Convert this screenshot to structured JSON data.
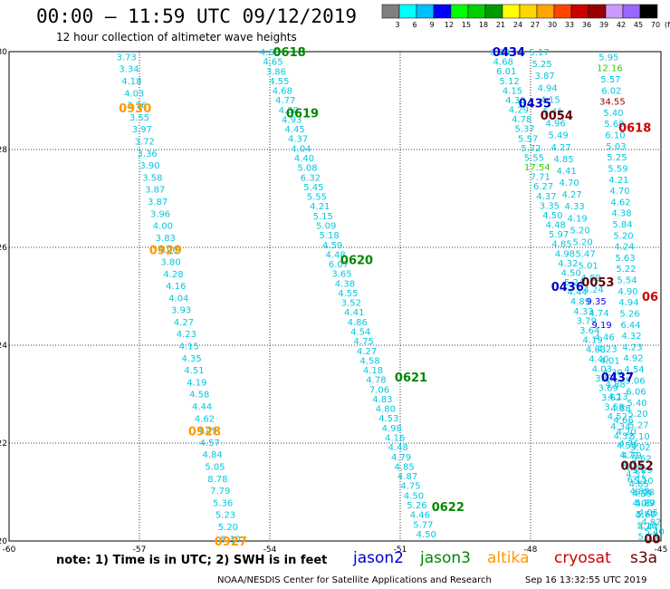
{
  "header": {
    "title": "00:00 – 11:59 UTC 09/12/2019",
    "subtitle": "12 hour collection of altimeter wave heights"
  },
  "colorbar": {
    "unit": "(ft)",
    "colors": [
      "#808080",
      "#00ffff",
      "#00bfff",
      "#0000ff",
      "#00ff00",
      "#00d000",
      "#009900",
      "#ffff00",
      "#ffd700",
      "#ffa500",
      "#ff4500",
      "#cc0000",
      "#990000",
      "#cc99ff",
      "#9966ff",
      "#000000"
    ],
    "labels": [
      "3",
      "6",
      "9",
      "12",
      "15",
      "18",
      "21",
      "24",
      "27",
      "30",
      "33",
      "36",
      "39",
      "42",
      "45",
      "70"
    ]
  },
  "footer": {
    "note": "note: 1) Time is in UTC; 2) SWH is in feet",
    "credit": "NOAA/NESDIS Center for Satellite Applications and Research",
    "timestamp": "Sep 16 13:32:55 UTC 2019"
  },
  "satellites": [
    {
      "name": "jason2",
      "color": "#0000cc"
    },
    {
      "name": "jason3",
      "color": "#008800"
    },
    {
      "name": "altika",
      "color": "#ff9900"
    },
    {
      "name": "cryosat",
      "color": "#cc0000"
    },
    {
      "name": "s3a",
      "color": "#660000"
    }
  ],
  "chart_data": {
    "type": "scatter",
    "title": "00:00 – 11:59 UTC 09/12/2019",
    "subtitle": "12 hour collection of altimeter wave heights",
    "xlim": [
      -60,
      -45
    ],
    "ylim": [
      20,
      30
    ],
    "x_ticks": [
      "-60",
      "-57",
      "-54",
      "-51",
      "-48",
      "-45"
    ],
    "y_ticks": [
      "20",
      "22",
      "24",
      "26",
      "28",
      "30"
    ],
    "grid": true,
    "units": "ft",
    "pass_times": [
      {
        "label": "0618",
        "sat": "jason3",
        "lon": -53.55,
        "lat": 30.0
      },
      {
        "label": "0619",
        "sat": "jason3",
        "lon": -53.25,
        "lat": 28.75
      },
      {
        "label": "0620",
        "sat": "jason3",
        "lon": -52.0,
        "lat": 25.75
      },
      {
        "label": "0621",
        "sat": "jason3",
        "lon": -50.75,
        "lat": 23.35
      },
      {
        "label": "0622",
        "sat": "jason3",
        "lon": -49.9,
        "lat": 20.7
      },
      {
        "label": "0930",
        "sat": "altika",
        "lon": -57.1,
        "lat": 28.85
      },
      {
        "label": "0929",
        "sat": "altika",
        "lon": -56.4,
        "lat": 25.95
      },
      {
        "label": "0928",
        "sat": "altika",
        "lon": -55.5,
        "lat": 22.25
      },
      {
        "label": "0927",
        "sat": "altika",
        "lon": -54.9,
        "lat": 20.0
      },
      {
        "label": "0434",
        "sat": "jason2",
        "lon": -48.5,
        "lat": 30.0
      },
      {
        "label": "0435",
        "sat": "jason2",
        "lon": -47.9,
        "lat": 28.95
      },
      {
        "label": "0436",
        "sat": "jason2",
        "lon": -47.15,
        "lat": 25.2
      },
      {
        "label": "0437",
        "sat": "jason2",
        "lon": -46.0,
        "lat": 23.35
      },
      {
        "label": "0054",
        "sat": "s3a",
        "lon": -47.4,
        "lat": 28.7
      },
      {
        "label": "0053",
        "sat": "s3a",
        "lon": -46.45,
        "lat": 25.3
      },
      {
        "label": "0052",
        "sat": "s3a",
        "lon": -45.55,
        "lat": 21.55
      },
      {
        "label": "0618",
        "sat": "cryosat",
        "lon": -45.6,
        "lat": 28.45
      },
      {
        "label": "06",
        "sat": "cryosat",
        "lon": -45.25,
        "lat": 25.0
      },
      {
        "label": "00",
        "sat": "s3a",
        "lon": -45.2,
        "lat": 20.05
      }
    ],
    "tracks": [
      {
        "name": "altika 0927-0930",
        "lon_top": -57.3,
        "lon_bottom": -54.9,
        "lat_top": 29.9,
        "lat_bottom": 20.05,
        "values": [
          "3.73",
          "3.34",
          "4.18",
          "4.03",
          "3.76",
          "3.55",
          "3.97",
          "3.72",
          "3.36",
          "3.90",
          "3.58",
          "3.87",
          "3.87",
          "3.96",
          "4.00",
          "3.83",
          "4.00",
          "3.80",
          "4.28",
          "4.16",
          "4.04",
          "3.93",
          "4.27",
          "4.23",
          "4.15",
          "4.35",
          "4.51",
          "4.19",
          "4.58",
          "4.44",
          "4.62",
          "4.49",
          "4.57",
          "4.84",
          "5.05",
          "8.78",
          "7.79",
          "5.36",
          "5.23",
          "5.20",
          "5.30"
        ]
      },
      {
        "name": "jason3 0618-0622",
        "lon_top": -54.0,
        "lon_bottom": -50.4,
        "lat_top": 30.0,
        "lat_bottom": 20.15,
        "values": [
          "4.65",
          "4.65",
          "3.86",
          "4.55",
          "4.68",
          "4.77",
          "4.30",
          "4.93",
          "4.45",
          "4.37",
          "4.04",
          "4.40",
          "5.08",
          "6.32",
          "5.45",
          "5.55",
          "4.21",
          "5.15",
          "5.09",
          "5.18",
          "4.59",
          "4.48",
          "6.07",
          "3.65",
          "4.38",
          "4.55",
          "3.52",
          "4.41",
          "4.86",
          "4.54",
          "4.75",
          "4.27",
          "4.58",
          "4.18",
          "4.78",
          "7.06",
          "4.83",
          "4.80",
          "4.53",
          "4.98",
          "4.16",
          "4.48",
          "4.79",
          "4.85",
          "4.87",
          "4.75",
          "4.50",
          "5.26",
          "4.46",
          "5.77",
          "4.50"
        ]
      },
      {
        "name": "jason2 0434-0437",
        "lon_top": -48.7,
        "lon_bottom": -45.15,
        "lat_top": 30.0,
        "lat_bottom": 20.2,
        "values": [
          "6.23",
          "4.68",
          "6.01",
          "5.12",
          "4.15",
          "4.30",
          "4.29",
          "4.78",
          "5.37",
          "5.57",
          "5.72",
          "5.55",
          "17.54",
          "7.71",
          "6.27",
          "4.37",
          "3.35",
          "4.50",
          "4.48",
          "5.97",
          "4.85",
          "4.98",
          "4.32",
          "4.50",
          "5.24",
          "4.44",
          "4.89",
          "4.33",
          "3.79",
          "3.64",
          "4.19",
          "4.63",
          "4.40",
          "4.03",
          "3.87",
          "3.69",
          "3.62",
          "3.58",
          "4.52",
          "4.34",
          "4.32",
          "4.50",
          "4.71",
          "4.51",
          "4.57",
          "4.65",
          "4.59",
          "4.27",
          "4.05",
          "4.82",
          "5.40"
        ]
      },
      {
        "name": "s3a 0052-0054",
        "lon_top": -47.8,
        "lon_bottom": -45.3,
        "lat_top": 30.0,
        "lat_bottom": 20.3,
        "values": [
          "5.17",
          "5.25",
          "3.87",
          "4.94",
          "4.15",
          "5.41",
          "4.96",
          "5.49",
          "4.27",
          "4.85",
          "4.41",
          "4.70",
          "4.27",
          "4.33",
          "4.19",
          "5.20",
          "5.20",
          "5.47",
          "5.01",
          "4.89",
          "4.24",
          "9.35",
          "4.74",
          "9.19",
          "4.46",
          "4.23",
          "4.01",
          "4.30",
          "4.88",
          "4.13",
          "4.88",
          "4.66",
          "4.20",
          "4.76",
          "4.79",
          "4.24",
          "6.15",
          "4.89",
          "4.05",
          "4.77",
          "4.44"
        ]
      },
      {
        "name": "cryosat east",
        "lon_top": -46.2,
        "lon_bottom": -45.3,
        "lat_top": 29.9,
        "lat_bottom": 20.1,
        "values": [
          "5.95",
          "12.16",
          "5.57",
          "6.02",
          "34.55",
          "5.40",
          "5.68",
          "6.10",
          "5.03",
          "5.25",
          "5.59",
          "4.21",
          "4.70",
          "4.62",
          "4.38",
          "5.84",
          "5.20",
          "4.24",
          "5.63",
          "5.22",
          "5.54",
          "4.90",
          "4.94",
          "5.26",
          "6.44",
          "4.32",
          "4.23",
          "4.92",
          "4.54",
          "5.06",
          "6.06",
          "5.40",
          "5.20",
          "5.27",
          "5.10",
          "5.02",
          "5.62",
          "5.29",
          "5.10",
          "5.28",
          "5.89",
          "5.60",
          "5.10",
          "5.35"
        ]
      }
    ]
  }
}
